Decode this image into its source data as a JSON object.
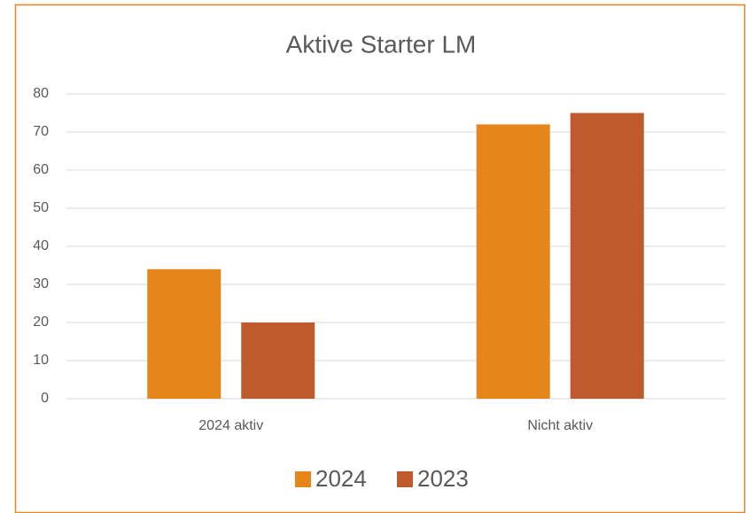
{
  "chart_data": {
    "type": "bar",
    "title": "Aktive Starter LM",
    "categories": [
      "2024 aktiv",
      "Nicht aktiv"
    ],
    "series": [
      {
        "name": "2024",
        "color": "#e6861a",
        "values": [
          34,
          72
        ]
      },
      {
        "name": "2023",
        "color": "#bf5a2c",
        "values": [
          20,
          75
        ]
      }
    ],
    "ylim": [
      0,
      80
    ],
    "yticks": [
      0,
      10,
      20,
      30,
      40,
      50,
      60,
      70,
      80
    ],
    "grid": true,
    "legend": "bottom"
  }
}
